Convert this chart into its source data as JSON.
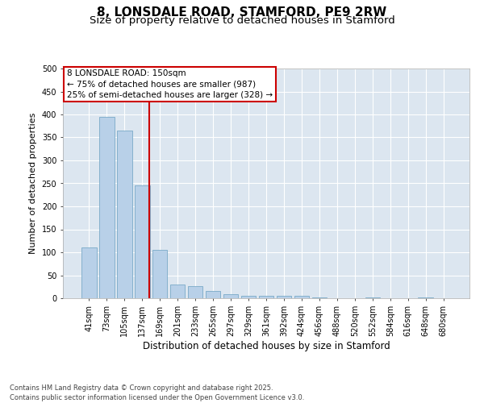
{
  "title": "8, LONSDALE ROAD, STAMFORD, PE9 2RW",
  "subtitle": "Size of property relative to detached houses in Stamford",
  "xlabel": "Distribution of detached houses by size in Stamford",
  "ylabel": "Number of detached properties",
  "footer_line1": "Contains HM Land Registry data © Crown copyright and database right 2025.",
  "footer_line2": "Contains public sector information licensed under the Open Government Licence v3.0.",
  "categories": [
    "41sqm",
    "73sqm",
    "105sqm",
    "137sqm",
    "169sqm",
    "201sqm",
    "233sqm",
    "265sqm",
    "297sqm",
    "329sqm",
    "361sqm",
    "392sqm",
    "424sqm",
    "456sqm",
    "488sqm",
    "520sqm",
    "552sqm",
    "584sqm",
    "616sqm",
    "648sqm",
    "680sqm"
  ],
  "values": [
    110,
    395,
    365,
    245,
    105,
    30,
    27,
    15,
    8,
    5,
    5,
    5,
    5,
    2,
    0,
    0,
    2,
    0,
    0,
    2,
    0
  ],
  "bar_color": "#b8d0e8",
  "bar_edge_color": "#7aaac8",
  "vline_color": "#cc0000",
  "vline_x": 3.4,
  "annotation_text": "8 LONSDALE ROAD: 150sqm\n← 75% of detached houses are smaller (987)\n25% of semi-detached houses are larger (328) →",
  "annotation_border_color": "#cc0000",
  "ylim": [
    0,
    500
  ],
  "yticks": [
    0,
    50,
    100,
    150,
    200,
    250,
    300,
    350,
    400,
    450,
    500
  ],
  "bg_color": "#dce6f0",
  "title_fontsize": 11,
  "subtitle_fontsize": 9.5,
  "ylabel_fontsize": 8,
  "xlabel_fontsize": 8.5,
  "tick_fontsize": 7,
  "annotation_fontsize": 7.5,
  "footer_fontsize": 6
}
